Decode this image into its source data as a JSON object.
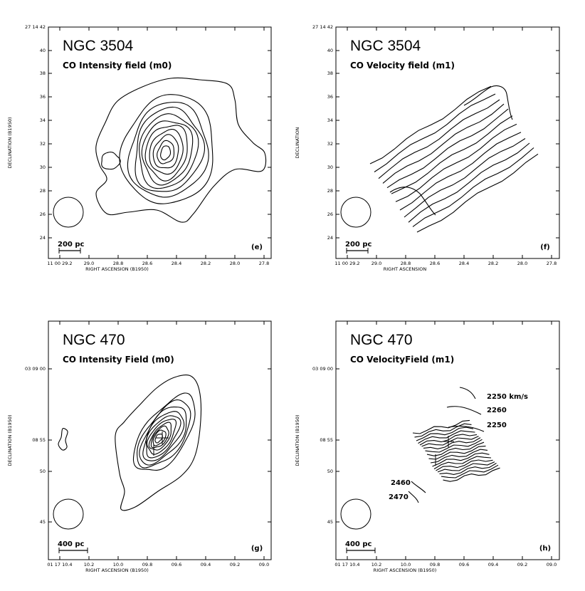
{
  "chart_data": [
    {
      "type": "contour",
      "panel": "(e)",
      "title": "NGC 3504",
      "subtitle": "CO Intensity field (m0)",
      "xlabel": "RIGHT ASCENSION (B1950)",
      "ylabel": "DECLINATION (B1950)",
      "x_ticks": [
        "11 00 29.2",
        "29.0",
        "28.8",
        "28.6",
        "28.4",
        "28.2",
        "28.0",
        "27.8"
      ],
      "y_ticks": [
        "27 14 42",
        "40",
        "38",
        "36",
        "34",
        "32",
        "30",
        "28",
        "26",
        "24"
      ],
      "scale_bar": "200 pc"
    },
    {
      "type": "contour",
      "panel": "(f)",
      "title": "NGC 3504",
      "subtitle": "CO Velocity field (m1)",
      "xlabel": "RIGHT ASCENSION",
      "ylabel": "DECLINATION",
      "x_ticks": [
        "11 00 29.2",
        "29.0",
        "28.8",
        "28.6",
        "28.4",
        "28.2",
        "28.0",
        "27.8"
      ],
      "y_ticks": [
        "27 14 42",
        "40",
        "38",
        "36",
        "34",
        "32",
        "30",
        "28",
        "26",
        "24"
      ],
      "scale_bar": "200 pc"
    },
    {
      "type": "contour",
      "panel": "(g)",
      "title": "NGC 470",
      "subtitle": "CO Intensity Field (m0)",
      "xlabel": "RIGHT ASCENSION (B1950)",
      "ylabel": "DECLINATION (B1950)",
      "x_ticks": [
        "01 17 10.4",
        "10.2",
        "10.0",
        "09.8",
        "09.6",
        "09.4",
        "09.2",
        "09.0"
      ],
      "y_ticks": [
        "03 09 00",
        "08 55",
        "50",
        "45"
      ],
      "scale_bar": "400 pc"
    },
    {
      "type": "contour",
      "panel": "(h)",
      "title": "NGC 470",
      "subtitle": "CO VelocityField (m1)",
      "xlabel": "RIGHT ASCENSION (B1950)",
      "ylabel": "DECLINATION (B1950)",
      "x_ticks": [
        "01 17 10.4",
        "10.2",
        "10.0",
        "09.8",
        "09.6",
        "09.4",
        "09.2",
        "09.0"
      ],
      "y_ticks": [
        "03 09 00",
        "08 55",
        "50",
        "45"
      ],
      "scale_bar": "400 pc",
      "contour_labels": [
        "2250 km/s",
        "2260",
        "2250",
        "2460",
        "2470"
      ]
    }
  ]
}
